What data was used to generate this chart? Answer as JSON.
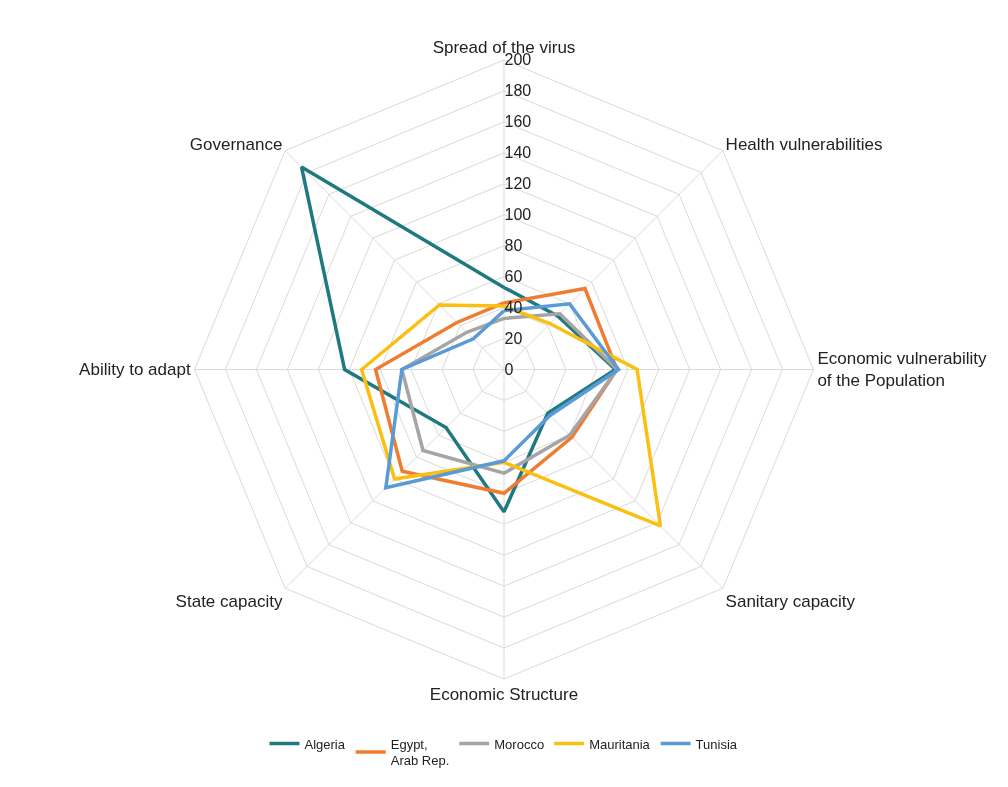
{
  "chart_data": {
    "type": "radar",
    "categories": [
      "Spread of the virus",
      "Health vulnerabilities",
      "Economic vulnerability\nof the Population",
      "Sanitary capacity",
      "Economic Structure",
      "State capacity",
      "Ability to adapt",
      "Governance"
    ],
    "series": [
      {
        "name": "Algeria",
        "color": "#1f7a80",
        "values": [
          53,
          49,
          72,
          40,
          92,
          53,
          103,
          185
        ]
      },
      {
        "name": "Egypt,\nArab Rep.",
        "color": "#ef7d31",
        "values": [
          43,
          74,
          73,
          62,
          80,
          93,
          83,
          43
        ]
      },
      {
        "name": "Morocco",
        "color": "#a5a5a5",
        "values": [
          33,
          51,
          73,
          60,
          67,
          74,
          66,
          34
        ]
      },
      {
        "name": "Mauritania",
        "color": "#fbbf14",
        "values": [
          41,
          42,
          86,
          143,
          60,
          100,
          92,
          59
        ]
      },
      {
        "name": "Tunisia",
        "color": "#5b9bd5",
        "values": [
          38,
          60,
          74,
          42,
          59,
          108,
          66,
          28
        ]
      }
    ],
    "ylim": [
      0,
      200
    ],
    "yticks": [
      0,
      20,
      40,
      60,
      80,
      100,
      120,
      140,
      160,
      180,
      200
    ],
    "grid": true,
    "legend": "bottom",
    "marker": "none",
    "line_style": "solid"
  }
}
